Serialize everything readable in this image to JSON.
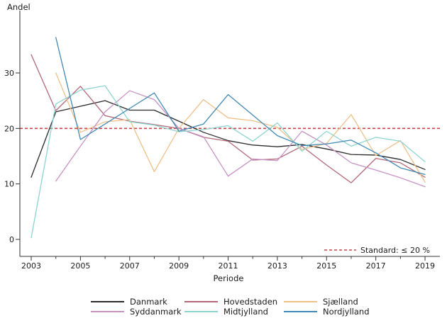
{
  "chart_data": {
    "type": "line",
    "title": "",
    "ylabel": "Andel",
    "xlabel": "Periode",
    "x": [
      2003,
      2004,
      2005,
      2006,
      2007,
      2008,
      2009,
      2010,
      2011,
      2012,
      2013,
      2014,
      2015,
      2016,
      2017,
      2018,
      2019
    ],
    "x_tick_labels": [
      "2003",
      "2005",
      "2007",
      "2009",
      "2011",
      "2013",
      "2015",
      "2017",
      "2019"
    ],
    "y_ticks": [
      "0",
      "10",
      "20",
      "30"
    ],
    "y_tick_values": [
      0,
      10,
      20,
      30
    ],
    "ylim": [
      0,
      41
    ],
    "grid": false,
    "legend_position": "bottom",
    "series": [
      {
        "name": "Danmark",
        "color": "#2b2b2b",
        "values": [
          11.2,
          23.0,
          24.0,
          25.0,
          23.3,
          23.3,
          21.3,
          19.3,
          17.8,
          17.0,
          16.7,
          17.1,
          16.3,
          15.3,
          15.2,
          14.4,
          12.6
        ]
      },
      {
        "name": "Hovedstaden",
        "color": "#b26877",
        "values": [
          33.3,
          23.2,
          27.6,
          22.3,
          21.3,
          20.7,
          20.0,
          18.4,
          17.7,
          14.3,
          14.5,
          16.8,
          13.4,
          10.2,
          14.6,
          13.8,
          11.2
        ]
      },
      {
        "name": "Sjælland",
        "color": "#eec18b",
        "values": [
          null,
          30.0,
          19.3,
          21.2,
          21.6,
          12.2,
          20.0,
          25.2,
          21.9,
          21.4,
          20.2,
          16.2,
          17.3,
          22.5,
          15.1,
          17.8,
          10.3
        ]
      },
      {
        "name": "Syddanmark",
        "color": "#c792c4",
        "values": [
          null,
          10.5,
          16.8,
          23.0,
          26.8,
          25.2,
          20.0,
          18.5,
          11.4,
          14.5,
          14.2,
          19.5,
          17.0,
          13.8,
          12.5,
          11.1,
          9.5
        ]
      },
      {
        "name": "Midtjylland",
        "color": "#8cd4d0",
        "values": [
          0.3,
          24.4,
          26.9,
          27.7,
          21.2,
          20.6,
          19.4,
          19.8,
          20.5,
          17.7,
          21.0,
          15.9,
          19.5,
          16.8,
          18.4,
          17.7,
          14.0
        ]
      },
      {
        "name": "Nordjylland",
        "color": "#4289b2",
        "values": [
          null,
          36.4,
          18.0,
          20.8,
          23.6,
          26.4,
          19.5,
          20.8,
          26.1,
          22.4,
          18.7,
          16.9,
          17.2,
          17.9,
          15.6,
          12.9,
          11.7
        ]
      }
    ],
    "reference_line": {
      "value": 20,
      "label": "Standard: ≤ 20 %",
      "color": "#cb4247",
      "style": "dashed"
    },
    "axis_color": "#333333"
  }
}
